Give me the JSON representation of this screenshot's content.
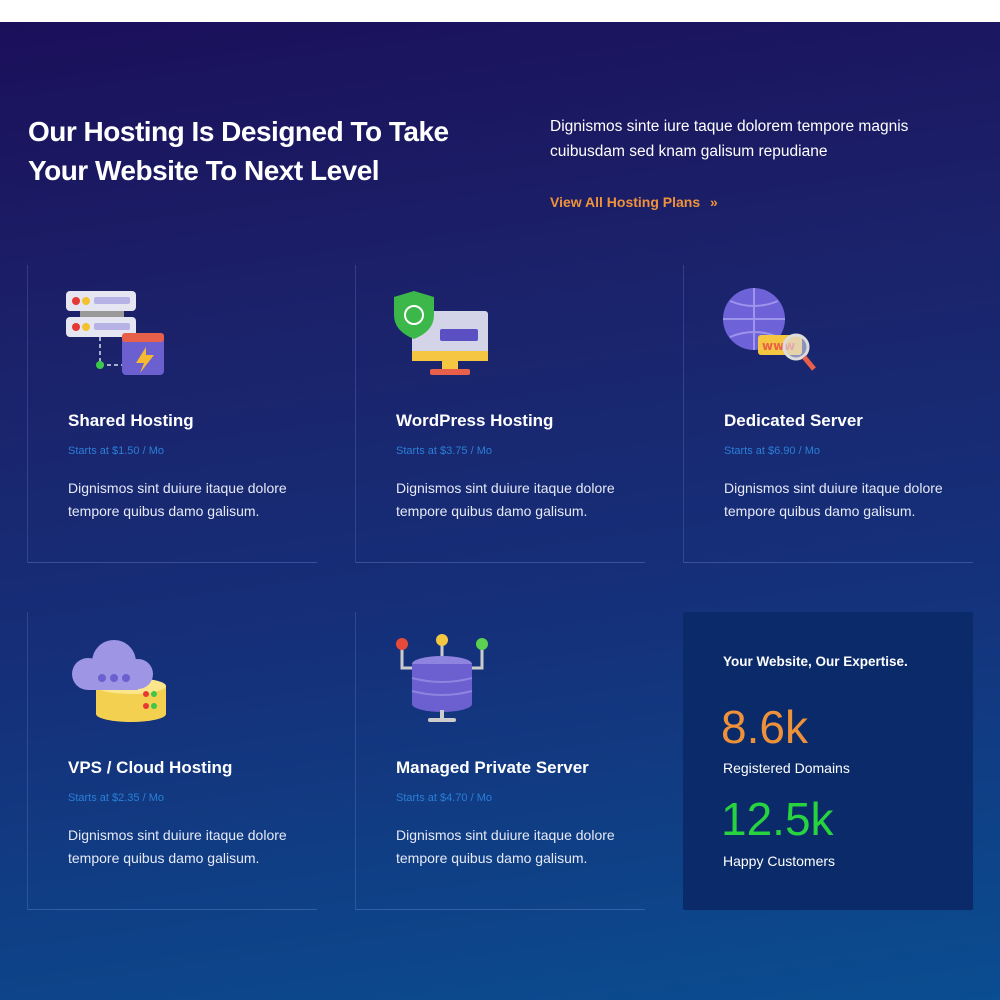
{
  "header": {
    "title": "Our Hosting Is Designed To Take Your Website To Next Level",
    "intro": "Dignismos sinte iure taque dolorem tempore magnis cuibusdam sed knam galisum repudiane",
    "link": "View All Hosting Plans",
    "link_icon": "double-chevron-right",
    "link_arrow": "»"
  },
  "cards": [
    {
      "title": "Shared Hosting",
      "price": "Starts at $1.50 / Mo",
      "desc": "Dignismos sint duiure itaque dolore tempore quibus damo galisum.",
      "icon": "server-lightning"
    },
    {
      "title": "WordPress Hosting",
      "price": "Starts at $3.75 / Mo",
      "desc": "Dignismos sint duiure itaque dolore tempore quibus damo galisum.",
      "icon": "monitor-shield"
    },
    {
      "title": "Dedicated Server",
      "price": "Starts at $6.90 / Mo",
      "desc": "Dignismos sint duiure itaque dolore tempore quibus damo galisum.",
      "icon": "globe-www"
    },
    {
      "title": "VPS / Cloud Hosting",
      "price": "Starts at $2.35 / Mo",
      "desc": "Dignismos sint duiure itaque dolore tempore quibus damo galisum.",
      "icon": "cloud-database"
    },
    {
      "title": "Managed Private Server",
      "price": "Starts at $4.70 / Mo",
      "desc": "Dignismos sint duiure itaque dolore tempore quibus damo galisum.",
      "icon": "database-network"
    }
  ],
  "stats": {
    "heading": "Your Website, Our Expertise.",
    "items": [
      {
        "value": "8.6k",
        "label": "Registered Domains",
        "color": "#ee913a"
      },
      {
        "value": "12.5k",
        "label": "Happy Customers",
        "color": "#27d33f"
      }
    ]
  }
}
